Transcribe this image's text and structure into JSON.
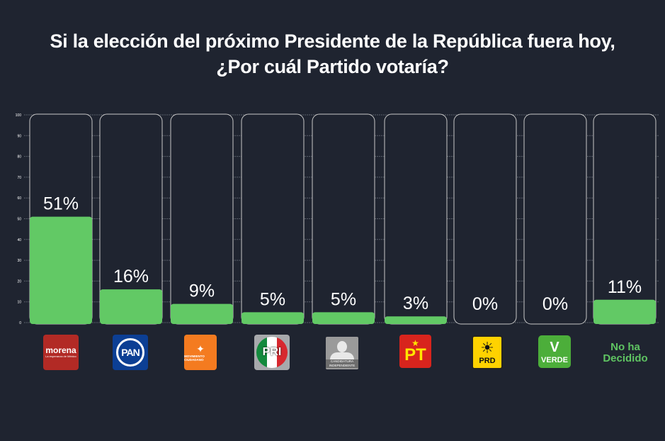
{
  "title": {
    "line1": "Si la elección del próximo Presidente de la República fuera hoy,",
    "line2": "¿Por cuál Partido votaría?"
  },
  "colors": {
    "background": "#1f2430",
    "bar_fill": "#62c965",
    "bar_outline": "#c8c8c8",
    "text": "#ffffff",
    "undecided_text": "#5fc462"
  },
  "chart_data": {
    "type": "bar",
    "title": "Si la elección del próximo Presidente de la República fuera hoy, ¿Por cuál Partido votaría?",
    "xlabel": "",
    "ylabel": "",
    "ylim": [
      0,
      100
    ],
    "yticks": [
      0,
      10,
      20,
      30,
      40,
      50,
      60,
      70,
      80,
      90,
      100
    ],
    "grid": true,
    "categories": [
      "Morena",
      "PAN",
      "Movimiento Ciudadano",
      "PRI",
      "Candidatura Independiente",
      "PT",
      "PRD",
      "Verde",
      "No ha Decidido"
    ],
    "values": [
      51,
      16,
      9,
      5,
      5,
      3,
      0,
      0,
      11
    ],
    "data_labels": [
      "51%",
      "16%",
      "9%",
      "5%",
      "5%",
      "3%",
      "0%",
      "0%",
      "11%"
    ]
  },
  "logos": [
    {
      "name": "morena",
      "text": "morena",
      "subtext": "La esperanza de México"
    },
    {
      "name": "pan",
      "text": "PAN"
    },
    {
      "name": "movimiento-ciudadano",
      "symbol": "✦",
      "text": "MOVIMIENTO CIUDADANO"
    },
    {
      "name": "pri",
      "text": "PRI"
    },
    {
      "name": "candidatura-independiente",
      "text": "CANDIDATURA INDEPENDIENTE"
    },
    {
      "name": "pt",
      "symbol": "★",
      "text": "PT"
    },
    {
      "name": "prd",
      "symbol": "☀",
      "text": "PRD"
    },
    {
      "name": "verde",
      "symbol": "V",
      "text": "VERDE"
    },
    {
      "name": "no-ha-decidido",
      "text": "No ha Decidido"
    }
  ]
}
